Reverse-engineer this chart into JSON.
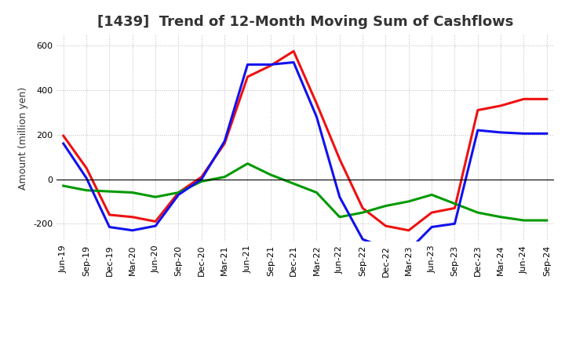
{
  "title": "[1439]  Trend of 12-Month Moving Sum of Cashflows",
  "ylabel": "Amount (million yen)",
  "xlabels": [
    "Jun-19",
    "Sep-19",
    "Dec-19",
    "Mar-20",
    "Jun-20",
    "Sep-20",
    "Dec-20",
    "Mar-21",
    "Jun-21",
    "Sep-21",
    "Dec-21",
    "Mar-22",
    "Jun-22",
    "Sep-22",
    "Dec-22",
    "Mar-23",
    "Jun-23",
    "Sep-23",
    "Dec-23",
    "Mar-24",
    "Jun-24",
    "Sep-24"
  ],
  "operating": [
    195,
    50,
    -160,
    -170,
    -190,
    -60,
    10,
    160,
    460,
    510,
    575,
    340,
    90,
    -130,
    -210,
    -230,
    -150,
    -130,
    310,
    330,
    360,
    360
  ],
  "investing": [
    -30,
    -50,
    -55,
    -60,
    -80,
    -60,
    -10,
    10,
    70,
    20,
    -20,
    -60,
    -170,
    -150,
    -120,
    -100,
    -70,
    -110,
    -150,
    -170,
    -185,
    -185
  ],
  "free": [
    160,
    5,
    -215,
    -230,
    -210,
    -70,
    0,
    170,
    515,
    515,
    525,
    280,
    -80,
    -270,
    -310,
    -320,
    -215,
    -200,
    220,
    210,
    205,
    205
  ],
  "ylim": [
    -280,
    650
  ],
  "yticks": [
    -200,
    0,
    200,
    400,
    600
  ],
  "background_color": "#ffffff",
  "grid_color": "#bbbbbb",
  "operating_color": "#ee1111",
  "investing_color": "#009900",
  "free_color": "#1111ee",
  "title_fontsize": 13,
  "axis_fontsize": 9,
  "tick_fontsize": 8,
  "legend_fontsize": 9
}
